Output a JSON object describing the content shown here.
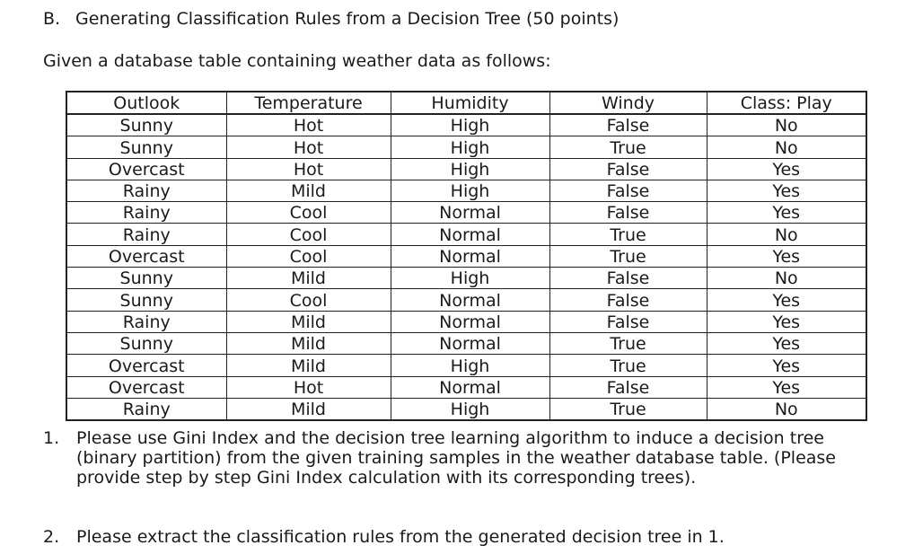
{
  "heading": {
    "number": "B.",
    "title": "Generating Classification Rules from a Decision Tree (50 points)"
  },
  "intro": "Given a database table containing weather data as follows:",
  "table": {
    "headers": [
      "Outlook",
      "Temperature",
      "Humidity",
      "Windy",
      "Class: Play"
    ],
    "rows": [
      [
        "Sunny",
        "Hot",
        "High",
        "False",
        "No"
      ],
      [
        "Sunny",
        "Hot",
        "High",
        "True",
        "No"
      ],
      [
        "Overcast",
        "Hot",
        "High",
        "False",
        "Yes"
      ],
      [
        "Rainy",
        "Mild",
        "High",
        "False",
        "Yes"
      ],
      [
        "Rainy",
        "Cool",
        "Normal",
        "False",
        "Yes"
      ],
      [
        "Rainy",
        "Cool",
        "Normal",
        "True",
        "No"
      ],
      [
        "Overcast",
        "Cool",
        "Normal",
        "True",
        "Yes"
      ],
      [
        "Sunny",
        "Mild",
        "High",
        "False",
        "No"
      ],
      [
        "Sunny",
        "Cool",
        "Normal",
        "False",
        "Yes"
      ],
      [
        "Rainy",
        "Mild",
        "Normal",
        "False",
        "Yes"
      ],
      [
        "Sunny",
        "Mild",
        "Normal",
        "True",
        "Yes"
      ],
      [
        "Overcast",
        "Mild",
        "High",
        "True",
        "Yes"
      ],
      [
        "Overcast",
        "Hot",
        "Normal",
        "False",
        "Yes"
      ],
      [
        "Rainy",
        "Mild",
        "High",
        "True",
        "No"
      ]
    ]
  },
  "questions": [
    {
      "number": "1.",
      "text": "Please use Gini Index and the decision tree learning algorithm to induce a decision tree (binary partition) from the given training samples in the weather database table. (Please provide step by step Gini Index calculation with its corresponding trees)."
    },
    {
      "number": "2.",
      "text": "Please extract the classification rules from the generated decision tree in 1."
    }
  ]
}
